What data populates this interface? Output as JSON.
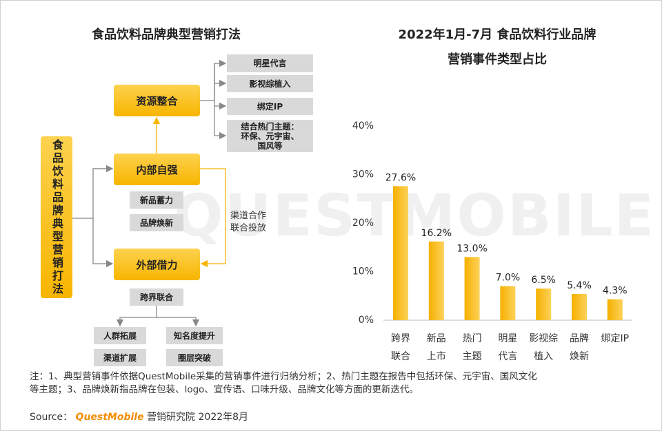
{
  "watermark": "QUESTMOBILE",
  "diagram": {
    "title": "食品饮料品牌典型营销打法",
    "root": "食品饮料品牌典型营销打法",
    "nodes": [
      {
        "label": "资源整合",
        "children": [
          [
            "明星代言"
          ],
          [
            "影视综植入"
          ],
          [
            "绑定IP"
          ],
          [
            "结合热门主题：",
            "环保、元宇宙、",
            "国风等"
          ]
        ]
      },
      {
        "label": "内部自强",
        "children": [
          [
            "新品蓄力"
          ],
          [
            "品牌焕新"
          ]
        ]
      },
      {
        "label": "外部借力",
        "children": [
          [
            "跨界联合"
          ]
        ],
        "results": [
          "人群拓展",
          "知名度提升",
          "渠道扩展",
          "圈层突破"
        ]
      }
    ],
    "edge_label": [
      "渠道合作",
      "联合投放"
    ]
  },
  "chart_data": {
    "type": "bar",
    "title": [
      "2022年1月-7月 食品饮料行业品牌",
      "营销事件类型占比"
    ],
    "categories": [
      [
        "跨界",
        "联合"
      ],
      [
        "新品",
        "上市"
      ],
      [
        "热门",
        "主题"
      ],
      [
        "明星",
        "代言"
      ],
      [
        "影视综",
        "植入"
      ],
      [
        "品牌",
        "焕新"
      ],
      [
        "绑定IP"
      ]
    ],
    "values": [
      27.6,
      16.2,
      13.0,
      7.0,
      6.5,
      5.4,
      4.3
    ],
    "value_labels": [
      "27.6%",
      "16.2%",
      "13.0%",
      "7.0%",
      "6.5%",
      "5.4%",
      "4.3%"
    ],
    "color": "#f7b500",
    "ylim": [
      0,
      40
    ],
    "yticks": [
      {
        "value": 0,
        "label": "0%"
      },
      {
        "value": 10,
        "label": "10%"
      },
      {
        "value": 20,
        "label": "20%"
      },
      {
        "value": 30,
        "label": "30%"
      },
      {
        "value": 40,
        "label": "40%"
      }
    ],
    "grid": false
  },
  "note": [
    "注：1、典型营销事件依据QuestMobile采集的营销事件进行归纳分析；2、热门主题在报告中包括环保、元宇宙、国风文化",
    "等主题；3、品牌焕新指品牌在包装、logo、宣传语、口味升级、品牌文化等方面的更新迭代。"
  ],
  "source": {
    "label": "Source：",
    "brand": "QuestMobile",
    "text": "营销研究院 2022年8月"
  }
}
